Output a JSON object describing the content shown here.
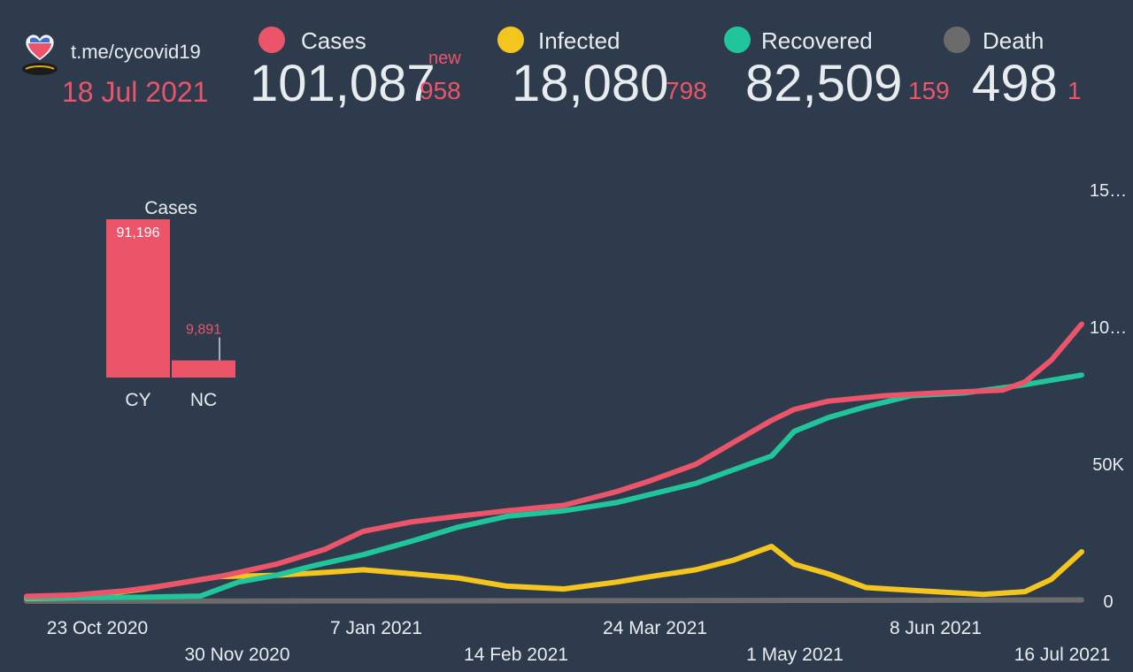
{
  "header": {
    "channel": "t.me/cycovid19",
    "date": "18 Jul 2021"
  },
  "colors": {
    "background": "#2e3b4d",
    "cases": "#ec5569",
    "infected": "#f4c51f",
    "recovered": "#21c59b",
    "death": "#6b6b6b",
    "text": "#e9ecef"
  },
  "stats": {
    "cases": {
      "label": "Cases",
      "value": "101,087",
      "new_label": "new",
      "new": "958"
    },
    "infected": {
      "label": "Infected",
      "value": "18,080",
      "new": "798"
    },
    "recovered": {
      "label": "Recovered",
      "value": "82,509",
      "new": "159"
    },
    "death": {
      "label": "Death",
      "value": "498",
      "new": "1"
    }
  },
  "chart_data": [
    {
      "type": "bar",
      "title": "Cases",
      "categories": [
        "CY",
        "NC"
      ],
      "values": [
        91196,
        9891
      ],
      "value_labels": [
        "91,196",
        "9,891"
      ],
      "color": "#ec5569"
    },
    {
      "type": "line",
      "x_tick_labels_top": [
        "23 Oct 2020",
        "7 Jan 2021",
        "24 Mar 2021",
        "8 Jun 2021"
      ],
      "x_tick_labels_bottom": [
        "30 Nov 2020",
        "14 Feb 2021",
        "1 May 2021",
        "16 Jul 2021"
      ],
      "y_tick_labels": [
        "0",
        "50K",
        "10…",
        "15…"
      ],
      "ylim": [
        0,
        150000
      ],
      "grid": false,
      "x_start": "2020-10-10",
      "x_end": "2021-07-16",
      "series": [
        {
          "name": "Cases",
          "color": "#ec5569",
          "points": [
            [
              "2020-10-10",
              1800
            ],
            [
              "2020-10-23",
              2300
            ],
            [
              "2020-11-05",
              3800
            ],
            [
              "2020-11-15",
              5600
            ],
            [
              "2020-11-30",
              9000
            ],
            [
              "2020-12-15",
              13500
            ],
            [
              "2020-12-28",
              19000
            ],
            [
              "2021-01-07",
              25500
            ],
            [
              "2021-01-20",
              29000
            ],
            [
              "2021-02-01",
              31000
            ],
            [
              "2021-02-14",
              33000
            ],
            [
              "2021-03-01",
              35000
            ],
            [
              "2021-03-15",
              40000
            ],
            [
              "2021-03-24",
              44000
            ],
            [
              "2021-04-05",
              50000
            ],
            [
              "2021-04-15",
              58000
            ],
            [
              "2021-04-25",
              66000
            ],
            [
              "2021-05-01",
              70000
            ],
            [
              "2021-05-10",
              73000
            ],
            [
              "2021-05-25",
              75000
            ],
            [
              "2021-06-08",
              76000
            ],
            [
              "2021-06-25",
              77000
            ],
            [
              "2021-07-01",
              80000
            ],
            [
              "2021-07-08",
              88000
            ],
            [
              "2021-07-16",
              101087
            ]
          ]
        },
        {
          "name": "Recovered",
          "color": "#21c59b",
          "points": [
            [
              "2020-10-10",
              1200
            ],
            [
              "2020-11-10",
              1500
            ],
            [
              "2020-11-25",
              1900
            ],
            [
              "2020-12-05",
              7000
            ],
            [
              "2020-12-15",
              9500
            ],
            [
              "2020-12-25",
              13000
            ],
            [
              "2021-01-07",
              17000
            ],
            [
              "2021-01-20",
              22000
            ],
            [
              "2021-02-01",
              27000
            ],
            [
              "2021-02-14",
              31000
            ],
            [
              "2021-03-01",
              33000
            ],
            [
              "2021-03-15",
              36000
            ],
            [
              "2021-03-24",
              39000
            ],
            [
              "2021-04-05",
              43000
            ],
            [
              "2021-04-15",
              48000
            ],
            [
              "2021-04-25",
              53000
            ],
            [
              "2021-05-01",
              62000
            ],
            [
              "2021-05-10",
              67000
            ],
            [
              "2021-05-20",
              71000
            ],
            [
              "2021-06-01",
              75000
            ],
            [
              "2021-06-15",
              76000
            ],
            [
              "2021-07-01",
              79000
            ],
            [
              "2021-07-16",
              82509
            ]
          ]
        },
        {
          "name": "Infected",
          "color": "#f4c51f",
          "points": [
            [
              "2020-10-10",
              1000
            ],
            [
              "2020-10-23",
              1300
            ],
            [
              "2020-11-10",
              4500
            ],
            [
              "2020-11-30",
              9000
            ],
            [
              "2020-12-15",
              9500
            ],
            [
              "2020-12-28",
              10500
            ],
            [
              "2021-01-07",
              11500
            ],
            [
              "2021-01-20",
              10000
            ],
            [
              "2021-02-01",
              8500
            ],
            [
              "2021-02-14",
              5500
            ],
            [
              "2021-03-01",
              4500
            ],
            [
              "2021-03-15",
              7000
            ],
            [
              "2021-03-24",
              9000
            ],
            [
              "2021-04-05",
              11500
            ],
            [
              "2021-04-15",
              15000
            ],
            [
              "2021-04-25",
              20000
            ],
            [
              "2021-05-01",
              13500
            ],
            [
              "2021-05-10",
              10000
            ],
            [
              "2021-05-20",
              5000
            ],
            [
              "2021-06-01",
              4000
            ],
            [
              "2021-06-20",
              2500
            ],
            [
              "2021-07-01",
              3500
            ],
            [
              "2021-07-08",
              8000
            ],
            [
              "2021-07-16",
              18080
            ]
          ]
        },
        {
          "name": "Death",
          "color": "#6b6b6b",
          "points": [
            [
              "2020-10-10",
              30
            ],
            [
              "2021-01-07",
              120
            ],
            [
              "2021-04-01",
              260
            ],
            [
              "2021-07-16",
              498
            ]
          ]
        }
      ]
    }
  ]
}
